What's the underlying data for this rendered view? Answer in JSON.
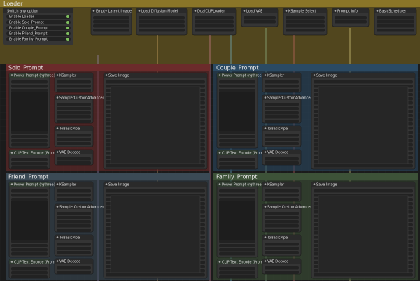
{
  "loader": {
    "title": "Loader",
    "switcher": {
      "title": "Switch any option",
      "rows": [
        "Enable Loader",
        "Enable Solo_Prompt",
        "Enable Couple_Prompt",
        "Enable Friend_Prompt",
        "Enable Family_Prompt"
      ]
    },
    "nodes": [
      "Empty Latent Image",
      "Load Diffusion Model",
      "DualCLIPLoader",
      "Load VAE",
      "KSamplerSelect",
      "Prompt Info",
      "BasicScheduler"
    ]
  },
  "groups": [
    {
      "title": "Solo_Prompt",
      "nodes": [
        "Power Prompt (rgthree)",
        "CLIP Text Encode (Prompt)",
        "KSampler",
        "SamplerCustomAdvanced",
        "ToBasicPipe",
        "VAE Decode",
        "Save Image"
      ]
    },
    {
      "title": "Couple_Prompt",
      "nodes": [
        "Power Prompt (rgthree)",
        "CLIP Text Encode (Prompt)",
        "KSampler",
        "SamplerCustomAdvanced",
        "ToBasicPipe",
        "VAE Decode",
        "Save Image"
      ]
    },
    {
      "title": "Friend_Prompt",
      "nodes": [
        "Power Prompt (rgthree)",
        "CLIP Text Encode (Prompt)",
        "KSampler",
        "SamplerCustomAdvanced",
        "ToBasicPipe",
        "VAE Decode",
        "Save Image"
      ]
    },
    {
      "title": "Family_Prompt",
      "nodes": [
        "Power Prompt (rgthree)",
        "CLIP Text Encode (Prompt)",
        "KSampler",
        "SamplerCustomAdvanced",
        "ToBasicPipe",
        "VAE Decode",
        "Save Image"
      ]
    }
  ]
}
